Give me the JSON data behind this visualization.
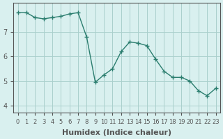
{
  "x": [
    0,
    1,
    2,
    3,
    4,
    5,
    6,
    7,
    8,
    9,
    10,
    11,
    12,
    13,
    14,
    15,
    16,
    17,
    18,
    19,
    20,
    21,
    22,
    23
  ],
  "y": [
    7.8,
    7.8,
    7.6,
    7.55,
    7.6,
    7.65,
    7.75,
    7.8,
    6.8,
    4.95,
    5.25,
    5.5,
    6.2,
    6.6,
    6.55,
    6.45,
    5.9,
    5.4,
    5.15,
    5.15,
    5.0,
    4.6,
    4.4,
    4.7
  ],
  "line_color": "#2a7d6e",
  "marker": "+",
  "marker_size": 4,
  "bg_color": "#d9f0ef",
  "grid_color": "#aacfcc",
  "axis_color": "#555555",
  "xlabel": "Humidex (Indice chaleur)",
  "xlabel_fontsize": 8,
  "tick_fontsize": 7,
  "yticks": [
    4,
    5,
    6,
    7
  ],
  "ylim": [
    3.7,
    8.2
  ],
  "xlim": [
    -0.5,
    23.5
  ]
}
